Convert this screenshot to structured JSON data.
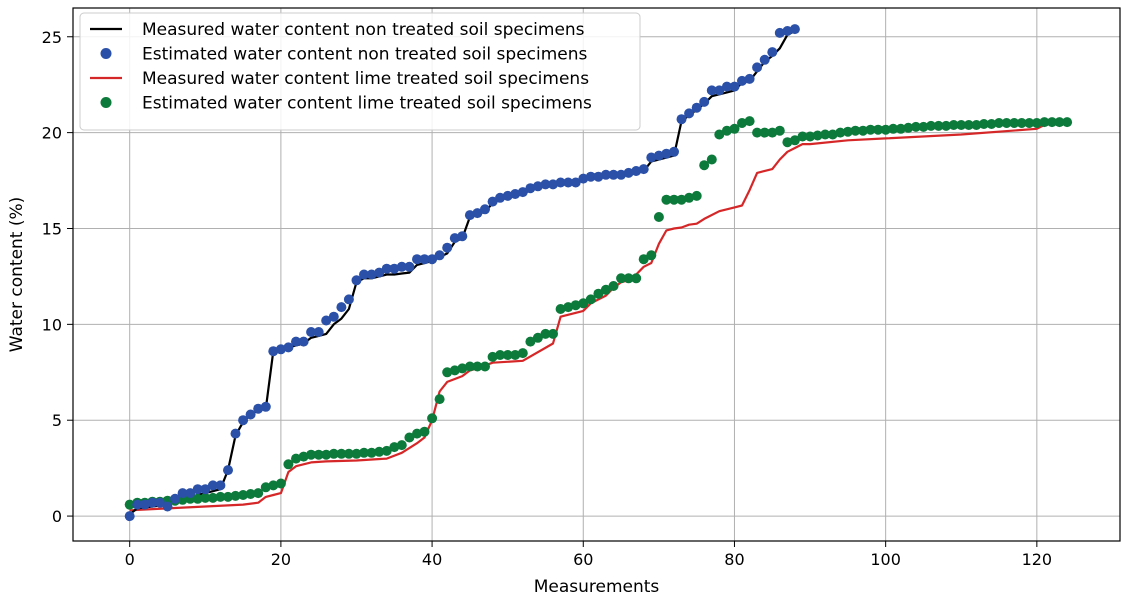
{
  "chart_data": {
    "type": "line",
    "title": "",
    "xlabel": "Measurements",
    "ylabel": "Water content (%)",
    "xlim": [
      -7.5,
      131
    ],
    "ylim": [
      -1.3,
      26.5
    ],
    "xticks": [
      0,
      20,
      40,
      60,
      80,
      100,
      120
    ],
    "yticks": [
      0,
      5,
      10,
      15,
      20,
      25
    ],
    "grid": true,
    "legend_position": "top-left",
    "series": [
      {
        "name": "Measured water content non treated soil specimens",
        "kind": "line",
        "color": "#000000",
        "x": [
          0,
          1,
          2,
          3,
          4,
          5,
          6,
          7,
          8,
          9,
          10,
          11,
          12,
          13,
          14,
          15,
          16,
          17,
          18,
          19,
          20,
          21,
          22,
          23,
          24,
          25,
          26,
          27,
          28,
          29,
          30,
          31,
          32,
          33,
          34,
          35,
          36,
          37,
          38,
          39,
          40,
          41,
          42,
          43,
          44,
          45,
          46,
          47,
          48,
          49,
          50,
          51,
          52,
          53,
          54,
          55,
          56,
          57,
          58,
          59,
          60,
          61,
          62,
          63,
          64,
          65,
          66,
          67,
          68,
          69,
          70,
          71,
          72,
          73,
          74,
          75,
          76,
          77,
          78,
          79,
          80,
          81,
          82,
          83,
          84,
          85,
          86,
          87,
          88
        ],
        "y": [
          0.1,
          0.4,
          0.45,
          0.5,
          0.55,
          0.6,
          0.7,
          0.9,
          1.0,
          1.1,
          1.2,
          1.3,
          1.4,
          2.4,
          4.2,
          4.9,
          5.3,
          5.5,
          5.6,
          8.6,
          8.7,
          8.8,
          8.9,
          9.0,
          9.3,
          9.4,
          9.5,
          10.0,
          10.3,
          10.8,
          12.2,
          12.4,
          12.4,
          12.5,
          12.6,
          12.6,
          12.65,
          12.7,
          13.1,
          13.2,
          13.3,
          13.5,
          13.7,
          14.3,
          14.5,
          15.6,
          15.7,
          15.9,
          16.3,
          16.5,
          16.6,
          16.7,
          16.8,
          17.0,
          17.1,
          17.2,
          17.3,
          17.3,
          17.35,
          17.4,
          17.6,
          17.65,
          17.7,
          17.7,
          17.7,
          17.75,
          17.8,
          17.9,
          18.0,
          18.5,
          18.6,
          18.7,
          18.8,
          20.6,
          20.9,
          21.2,
          21.5,
          21.9,
          22.0,
          22.1,
          22.2,
          22.6,
          22.7,
          23.2,
          23.7,
          24.0,
          24.4,
          25.1,
          25.3
        ]
      },
      {
        "name": "Estimated water content non treated soil specimens",
        "kind": "scatter",
        "color": "#2a50a8",
        "x": [
          0,
          1,
          2,
          3,
          4,
          5,
          6,
          7,
          8,
          9,
          10,
          11,
          12,
          13,
          14,
          15,
          16,
          17,
          18,
          19,
          20,
          21,
          22,
          23,
          24,
          25,
          26,
          27,
          28,
          29,
          30,
          31,
          32,
          33,
          34,
          35,
          36,
          37,
          38,
          39,
          40,
          41,
          42,
          43,
          44,
          45,
          46,
          47,
          48,
          49,
          50,
          51,
          52,
          53,
          54,
          55,
          56,
          57,
          58,
          59,
          60,
          61,
          62,
          63,
          64,
          65,
          66,
          67,
          68,
          69,
          70,
          71,
          72,
          73,
          74,
          75,
          76,
          77,
          78,
          79,
          80,
          81,
          82,
          83,
          84,
          85,
          86,
          87,
          88
        ],
        "y": [
          0.0,
          0.6,
          0.6,
          0.7,
          0.7,
          0.5,
          0.9,
          1.2,
          1.2,
          1.4,
          1.4,
          1.6,
          1.6,
          2.4,
          4.3,
          5.0,
          5.3,
          5.6,
          5.7,
          8.6,
          8.7,
          8.8,
          9.1,
          9.1,
          9.6,
          9.6,
          10.2,
          10.4,
          10.9,
          11.3,
          12.3,
          12.6,
          12.6,
          12.7,
          12.9,
          12.9,
          13.0,
          13.0,
          13.4,
          13.4,
          13.4,
          13.6,
          14.0,
          14.5,
          14.6,
          15.7,
          15.8,
          16.0,
          16.4,
          16.6,
          16.7,
          16.8,
          16.9,
          17.1,
          17.2,
          17.3,
          17.3,
          17.4,
          17.4,
          17.4,
          17.6,
          17.7,
          17.7,
          17.8,
          17.8,
          17.8,
          17.9,
          18.0,
          18.1,
          18.7,
          18.8,
          18.9,
          19.0,
          20.7,
          21.0,
          21.3,
          21.6,
          22.2,
          22.2,
          22.4,
          22.4,
          22.7,
          22.8,
          23.4,
          23.8,
          24.2,
          25.2,
          25.3,
          25.4
        ]
      },
      {
        "name": "Measured water content lime treated soil specimens",
        "kind": "line",
        "color": "#d62728",
        "x": [
          0,
          5,
          10,
          15,
          17,
          18,
          19,
          20,
          21,
          22,
          24,
          26,
          30,
          34,
          36,
          38,
          39,
          40,
          41,
          42,
          44,
          45,
          46,
          48,
          52,
          56,
          57,
          60,
          61,
          63,
          64,
          65,
          66,
          67,
          68,
          69,
          70,
          71,
          72,
          73,
          74,
          75,
          76,
          78,
          80,
          81,
          82,
          83,
          85,
          86,
          87,
          88,
          89,
          90,
          95,
          100,
          110,
          120,
          122
        ],
        "y": [
          0.3,
          0.4,
          0.5,
          0.6,
          0.7,
          1.0,
          1.1,
          1.2,
          2.3,
          2.6,
          2.8,
          2.85,
          2.9,
          3.0,
          3.3,
          3.8,
          4.1,
          5.0,
          6.5,
          7.0,
          7.3,
          7.6,
          7.7,
          8.0,
          8.1,
          9.0,
          10.4,
          10.7,
          11.1,
          11.5,
          11.9,
          12.2,
          12.3,
          12.6,
          13.0,
          13.2,
          14.2,
          14.9,
          15.0,
          15.05,
          15.2,
          15.25,
          15.5,
          15.9,
          16.1,
          16.2,
          17.0,
          17.9,
          18.1,
          18.6,
          19.0,
          19.2,
          19.4,
          19.4,
          19.6,
          19.7,
          19.9,
          20.2,
          20.6
        ]
      },
      {
        "name": "Estimated water content lime treated soil specimens",
        "kind": "scatter",
        "color": "#0c7a3a",
        "x": [
          0,
          1,
          2,
          3,
          4,
          5,
          6,
          7,
          8,
          9,
          10,
          11,
          12,
          13,
          14,
          15,
          16,
          17,
          18,
          19,
          20,
          21,
          22,
          23,
          24,
          25,
          26,
          27,
          28,
          29,
          30,
          31,
          32,
          33,
          34,
          35,
          36,
          37,
          38,
          39,
          40,
          41,
          42,
          43,
          44,
          45,
          46,
          47,
          48,
          49,
          50,
          51,
          52,
          53,
          54,
          55,
          56,
          57,
          58,
          59,
          60,
          61,
          62,
          63,
          64,
          65,
          66,
          67,
          68,
          69,
          70,
          71,
          72,
          73,
          74,
          75,
          76,
          77,
          78,
          79,
          80,
          81,
          82,
          83,
          84,
          85,
          86,
          87,
          88,
          89,
          90,
          91,
          92,
          93,
          94,
          95,
          96,
          97,
          98,
          99,
          100,
          101,
          102,
          103,
          104,
          105,
          106,
          107,
          108,
          109,
          110,
          111,
          112,
          113,
          114,
          115,
          116,
          117,
          118,
          119,
          120,
          121,
          122,
          123,
          124
        ],
        "y": [
          0.6,
          0.7,
          0.7,
          0.75,
          0.75,
          0.8,
          0.8,
          0.85,
          0.9,
          0.9,
          0.95,
          0.95,
          1.0,
          1.0,
          1.05,
          1.1,
          1.15,
          1.2,
          1.5,
          1.6,
          1.7,
          2.7,
          3.0,
          3.1,
          3.2,
          3.2,
          3.2,
          3.25,
          3.25,
          3.25,
          3.25,
          3.3,
          3.3,
          3.35,
          3.4,
          3.6,
          3.7,
          4.1,
          4.3,
          4.4,
          5.1,
          6.1,
          7.5,
          7.6,
          7.7,
          7.8,
          7.8,
          7.8,
          8.3,
          8.4,
          8.4,
          8.4,
          8.5,
          9.1,
          9.3,
          9.5,
          9.5,
          10.8,
          10.9,
          11.0,
          11.1,
          11.3,
          11.6,
          11.8,
          12.0,
          12.4,
          12.4,
          12.4,
          13.4,
          13.6,
          15.6,
          16.5,
          16.5,
          16.5,
          16.6,
          16.7,
          18.3,
          18.6,
          19.9,
          20.1,
          20.2,
          20.5,
          20.6,
          20.0,
          20.0,
          20.0,
          20.1,
          19.5,
          19.6,
          19.8,
          19.8,
          19.85,
          19.9,
          19.9,
          20.0,
          20.05,
          20.1,
          20.1,
          20.15,
          20.15,
          20.15,
          20.2,
          20.2,
          20.25,
          20.3,
          20.3,
          20.35,
          20.35,
          20.35,
          20.4,
          20.4,
          20.4,
          20.4,
          20.45,
          20.45,
          20.5,
          20.5,
          20.5,
          20.5,
          20.5,
          20.5,
          20.55,
          20.55,
          20.55,
          20.55
        ]
      }
    ]
  }
}
